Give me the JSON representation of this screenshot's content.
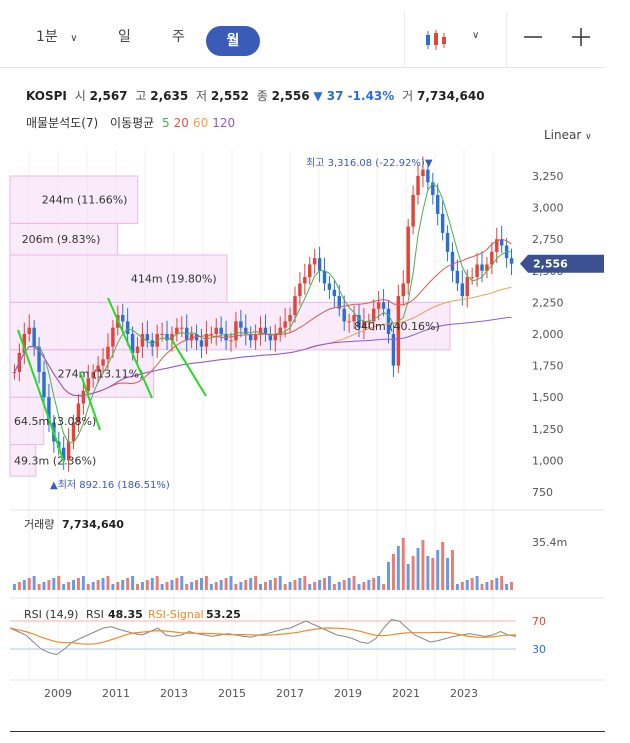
{
  "toolbar": {
    "interval": "1분",
    "tabs": [
      "일",
      "주",
      "월"
    ],
    "active_tab": "월",
    "chart_type_icon": "candlestick-icon",
    "zoom_out": "—",
    "zoom_in": "+"
  },
  "info": {
    "symbol": "KOSPI",
    "open_label": "시",
    "open": "2,567",
    "high_label": "고",
    "high": "2,635",
    "low_label": "저",
    "low": "2,552",
    "close_label": "종",
    "close": "2,556",
    "change": "▼ 37 -1.43%",
    "volume_label": "거",
    "volume": "7,734,640"
  },
  "overlays": {
    "volume_profile": "매물분석도(7)",
    "ma_label": "이동평균",
    "ma_periods": [
      "5",
      "20",
      "60",
      "120"
    ],
    "ma_colors": [
      "#4caf50",
      "#e0574f",
      "#f0a050",
      "#8e59d6"
    ]
  },
  "scale": "Linear",
  "colors": {
    "up": "#e0443a",
    "down": "#2b6fd6",
    "accent": "#3a5bb8",
    "highlight": "#22dd22",
    "profile": "#f7ddf7"
  },
  "chart_data": {
    "type": "candlestick",
    "price_axis": {
      "ticks": [
        "3,250",
        "3,000",
        "2,750",
        "2,500",
        "2,250",
        "2,000",
        "1,750",
        "1,500",
        "1,250",
        "1,000",
        "750"
      ],
      "ylim": [
        750,
        3250
      ]
    },
    "time_axis": {
      "ticks": [
        "2009",
        "2011",
        "2013",
        "2015",
        "2017",
        "2019",
        "2021",
        "2023"
      ]
    },
    "current_price": "2,556",
    "max_label": "최고 3,316.08 (-22.92%)▼",
    "min_label": "▲최저 892.16 (186.51%)",
    "close_series": [
      1700,
      1850,
      2000,
      2050,
      1900,
      1700,
      1500,
      1300,
      1150,
      1100,
      1000,
      1150,
      1300,
      1450,
      1550,
      1650,
      1700,
      1750,
      1800,
      1900,
      2050,
      2150,
      2100,
      2000,
      1850,
      1900,
      2000,
      1950,
      1900,
      2000,
      2000,
      1950,
      2000,
      2050,
      2050,
      1950,
      2000,
      1950,
      1900,
      2000,
      2000,
      2050,
      2000,
      1950,
      1950,
      2100,
      2050,
      2000,
      1950,
      2000,
      2050,
      2000,
      1950,
      2000,
      2050,
      2100,
      2150,
      2300,
      2400,
      2450,
      2550,
      2600,
      2500,
      2400,
      2350,
      2300,
      2200,
      2100,
      2100,
      2150,
      2050,
      2100,
      2100,
      2200,
      2250,
      2200,
      2000,
      1750,
      2300,
      2400,
      2850,
      3100,
      3250,
      3300,
      3200,
      3100,
      2950,
      2800,
      2650,
      2500,
      2400,
      2300,
      2450,
      2450,
      2550,
      2500,
      2550,
      2650,
      2750,
      2700,
      2600,
      2556
    ],
    "volume_profile": [
      {
        "range": [
          2875,
          3250
        ],
        "volume": "244m (11.66%)",
        "share": 0.1166
      },
      {
        "range": [
          2625,
          2875
        ],
        "volume": "206m (9.83%)",
        "share": 0.0983
      },
      {
        "range": [
          2250,
          2625
        ],
        "volume": "414m (19.80%)",
        "share": 0.198
      },
      {
        "range": [
          1875,
          2250
        ],
        "volume": "840m (40.16%)",
        "share": 0.4016
      },
      {
        "range": [
          1500,
          1875
        ],
        "volume": "274m (13.11%)",
        "share": 0.1311
      },
      {
        "range": [
          1125,
          1500
        ],
        "volume": "64.5m (3.08%)",
        "share": 0.0308
      },
      {
        "range": [
          875,
          1125
        ],
        "volume": "49.3m (2.36%)",
        "share": 0.0236
      }
    ],
    "volume_pane": {
      "label": "거래량",
      "value": "7,734,640",
      "axis_tick": "35.4m"
    },
    "rsi_pane": {
      "title": "RSI (14,9)",
      "rsi_label": "RSI",
      "rsi_value": "48.35",
      "signal_label": "RSI-Signal",
      "signal_value": "53.25",
      "upper": "70",
      "lower": "30",
      "rsi_series": [
        60,
        55,
        50,
        40,
        30,
        25,
        22,
        30,
        40,
        45,
        50,
        55,
        60,
        62,
        58,
        55,
        52,
        50,
        55,
        60,
        50,
        48,
        50,
        55,
        52,
        50,
        48,
        50,
        52,
        50,
        48,
        47,
        50,
        52,
        55,
        58,
        60,
        65,
        70,
        65,
        60,
        55,
        50,
        48,
        45,
        40,
        38,
        45,
        60,
        72,
        70,
        60,
        50,
        45,
        40,
        42,
        45,
        48,
        50,
        52,
        50,
        48,
        50,
        55,
        50,
        48
      ]
    }
  }
}
